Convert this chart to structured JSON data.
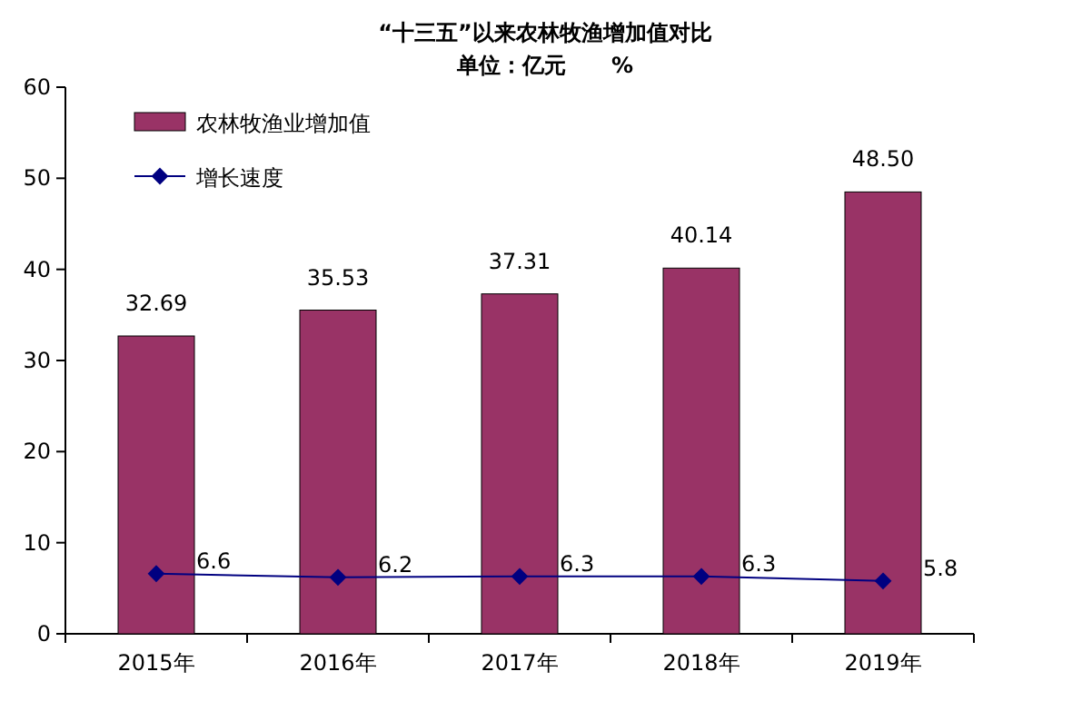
{
  "chart_data": {
    "type": "bar",
    "title": "“十三五”以来农林牧渔增加值对比",
    "subtitle": "单位：亿元      %",
    "categories": [
      "2015年",
      "2016年",
      "2017年",
      "2018年",
      "2019年"
    ],
    "series": [
      {
        "name": "农林牧渔业增加值",
        "color": "#993366",
        "values": [
          32.69,
          35.53,
          37.31,
          40.14,
          48.5
        ],
        "value_labels": [
          "32.69",
          "35.53",
          "37.31",
          "40.14",
          "48.50"
        ]
      },
      {
        "name": "增长速度",
        "type": "line",
        "color": "#000080",
        "values": [
          6.6,
          6.2,
          6.3,
          6.3,
          5.8
        ]
      }
    ],
    "marker": "diamond",
    "data_labels": true,
    "legend": "top left",
    "ylim": [
      0,
      60
    ],
    "yticks": [
      0,
      10,
      20,
      30,
      40,
      50,
      60
    ]
  }
}
